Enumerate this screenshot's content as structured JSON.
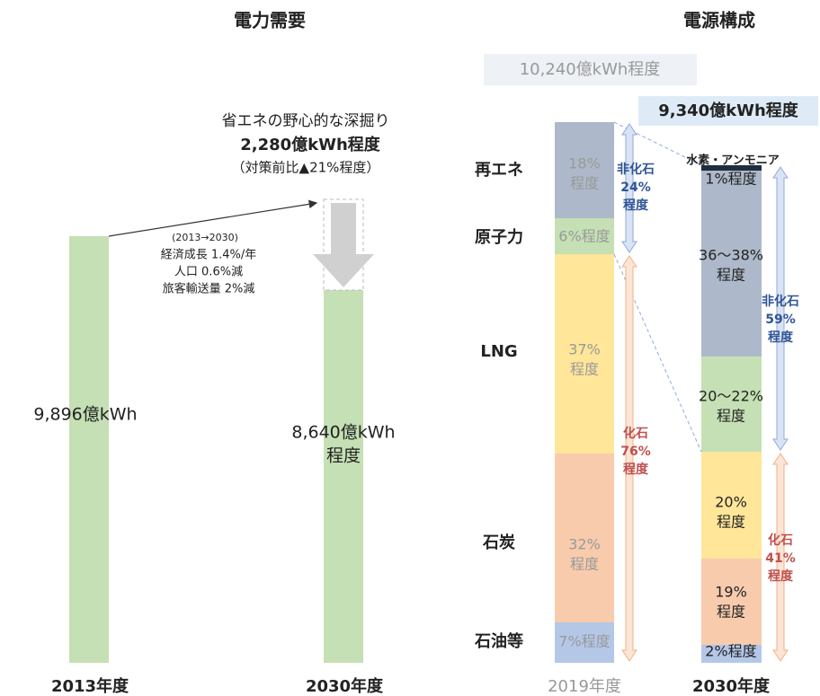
{
  "demand": {
    "title": "電力需要",
    "bar_2013": {
      "label": "9,896億kWh",
      "year": "2013年度"
    },
    "bar_2030": {
      "label_lines": [
        "8,640億kWh",
        "程度"
      ],
      "year": "2030年度"
    },
    "savings": {
      "lines": [
        "省エネの野心的な深掘り",
        "2,280億kWh程度",
        "（対策前比▲21%程度）"
      ]
    },
    "assumptions": [
      "(2013→2030)",
      "経済成長 1.4%/年",
      "人口 0.6%減",
      "旅客輸送量 2%減"
    ]
  },
  "mix": {
    "title": "電源構成",
    "total_2019": "10,240億kWh程度",
    "total_2030": "9,340億kWh程度",
    "sources": [
      "再エネ",
      "原子力",
      "LNG",
      "石炭",
      "石油等"
    ],
    "year_2019": "2019年度",
    "year_2030": "2030年度",
    "shares_2019": [
      [
        "18%",
        "程度"
      ],
      [
        "6%程度"
      ],
      [
        "37%",
        "程度"
      ],
      [
        "32%",
        "程度"
      ],
      [
        "7%程度"
      ]
    ],
    "shares_2030": [
      [
        "1%程度"
      ],
      [
        "36〜38%",
        "程度"
      ],
      [
        "20〜22%",
        "程度"
      ],
      [
        "20%",
        "程度"
      ],
      [
        "19%",
        "程度"
      ],
      [
        "2%程度"
      ]
    ],
    "hydrogen_label": "水素・アンモニア",
    "nonfossil_2019": [
      "非化石",
      "24%",
      "程度"
    ],
    "fossil_2019": [
      "化石",
      "76%",
      "程度"
    ],
    "nonfossil_2030": [
      "非化石",
      "59%",
      "程度"
    ],
    "fossil_2030": [
      "化石",
      "41%",
      "程度"
    ]
  }
}
